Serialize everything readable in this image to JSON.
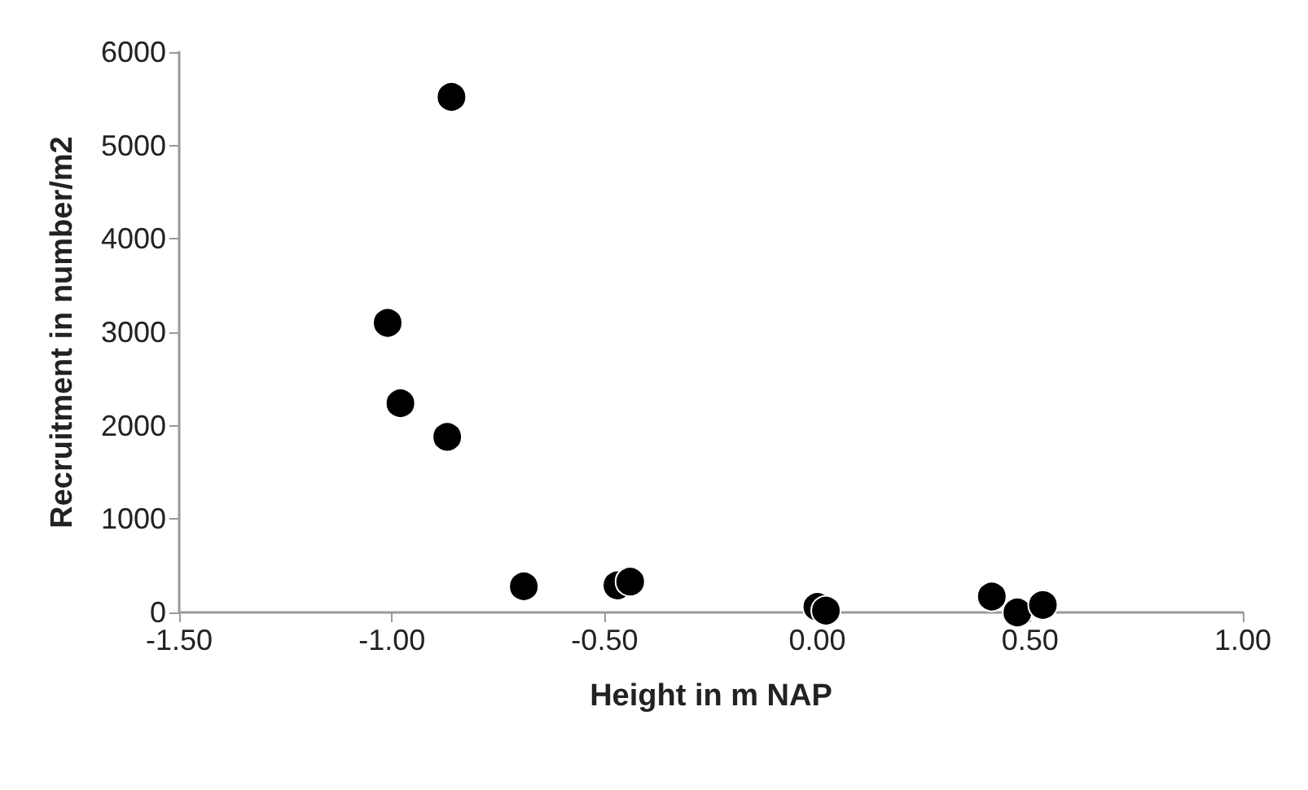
{
  "chart_data": {
    "type": "scatter",
    "xlabel": "Height in m NAP",
    "ylabel": "Recruitment in number/m2",
    "x": [
      -0.86,
      -1.01,
      -0.98,
      -0.87,
      -0.69,
      -0.47,
      -0.44,
      0.0,
      0.02,
      0.41,
      0.47,
      0.53
    ],
    "values": [
      5520,
      3100,
      2240,
      1880,
      280,
      290,
      330,
      60,
      20,
      170,
      0,
      80
    ],
    "color": "#000000",
    "marker": "circle",
    "xlim": [
      -1.5,
      1.0
    ],
    "xticks": [
      {
        "value": -1.5,
        "label": "-1.50"
      },
      {
        "value": -1.0,
        "label": "-1.00"
      },
      {
        "value": -0.5,
        "label": "-0.50"
      },
      {
        "value": 0,
        "label": "0.00"
      },
      {
        "value": 0.5,
        "label": "0.50"
      },
      {
        "value": 1.0,
        "label": "1.00"
      }
    ],
    "ylim": [
      0,
      6000
    ],
    "yticks": [
      0,
      1000,
      2000,
      3000,
      4000,
      5000,
      6000
    ],
    "grid": false
  }
}
